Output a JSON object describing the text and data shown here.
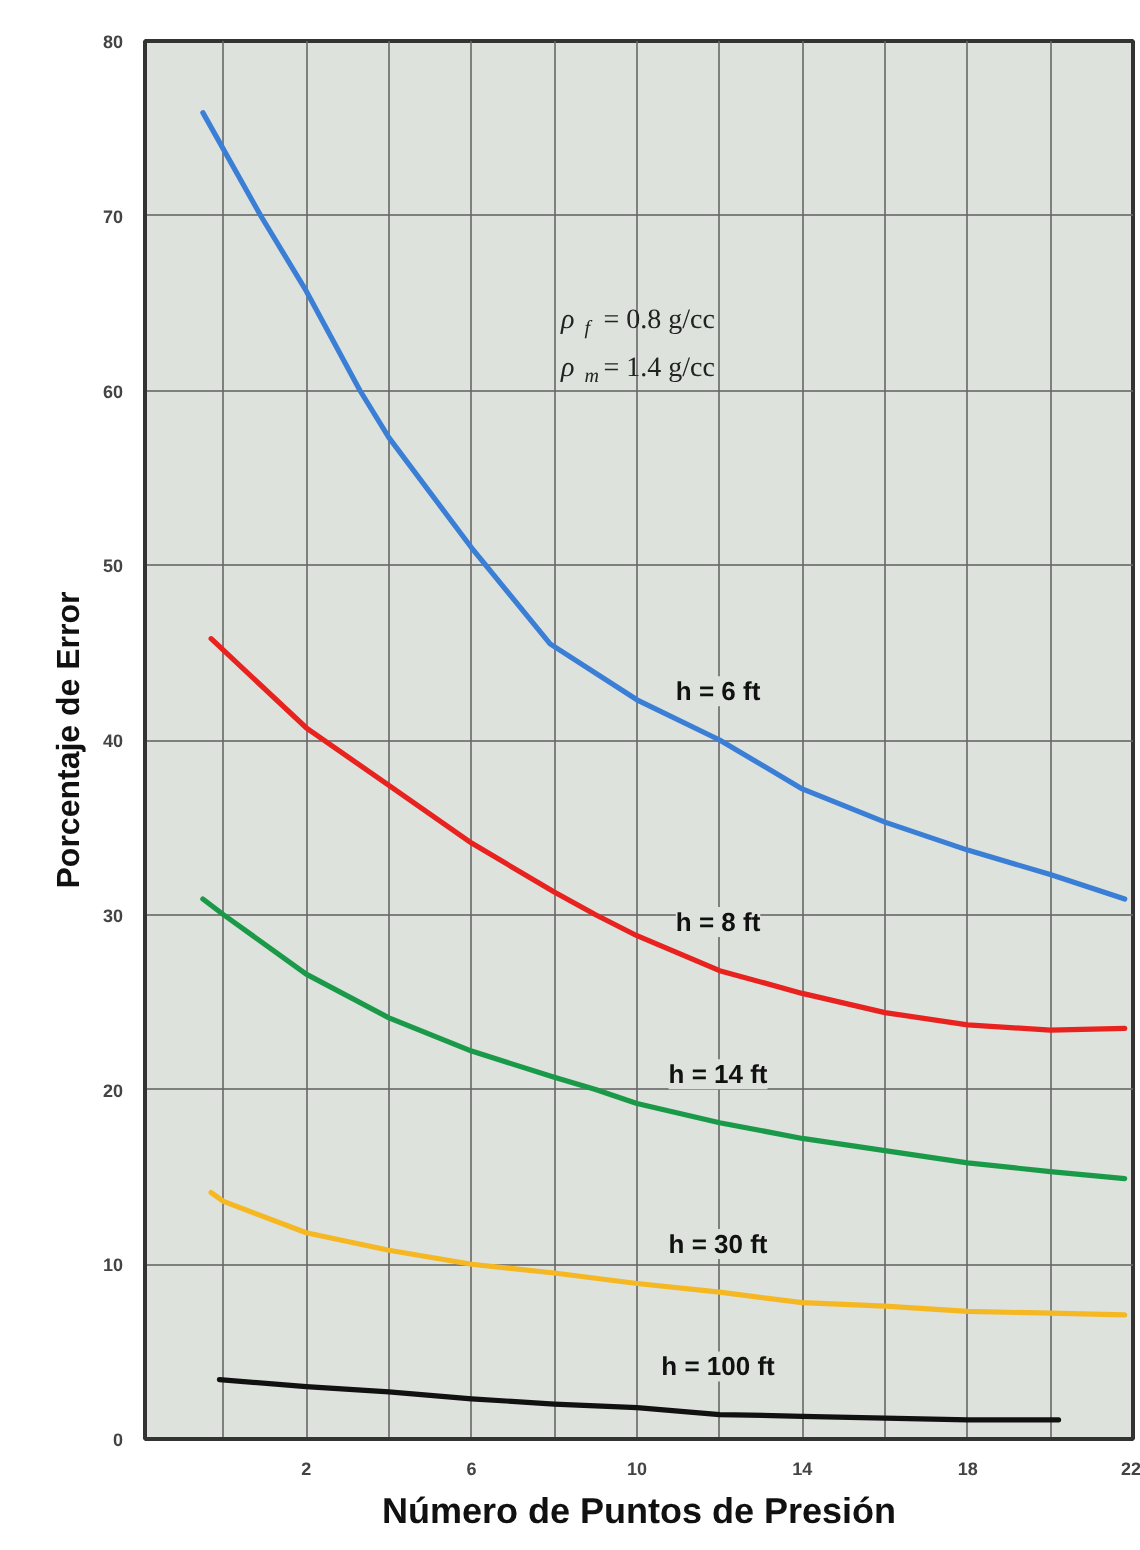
{
  "chart_data": {
    "type": "line",
    "xlabel": "Número de Puntos de Presión",
    "ylabel": "Porcentaje de Error",
    "annotations": [
      "ρ$_{f}$ = 0.8  g/cc",
      "ρ$_{m}$ = 1.4  g/cc"
    ],
    "xlim": [
      -1.9,
      22
    ],
    "ylim": [
      0,
      80
    ],
    "xticks": [
      {
        "value": 0,
        "label": null
      },
      2,
      {
        "value": 4,
        "label": null
      },
      6,
      {
        "value": 8,
        "label": null
      },
      10,
      {
        "value": 12,
        "label": null
      },
      14,
      {
        "value": 16,
        "label": null
      },
      18,
      {
        "value": 20,
        "label": null
      },
      22
    ],
    "yticks": [
      0,
      10,
      20,
      30,
      40,
      50,
      60,
      70,
      80
    ],
    "grid": true,
    "marker": "none",
    "line_style": "solid",
    "series": [
      {
        "name": "h = 6 ft",
        "color": "#3a7fd5",
        "x": [
          -0.5,
          0.9,
          2,
          3.3,
          4,
          6,
          7.9,
          10,
          12,
          14,
          16,
          18,
          20,
          21.8
        ],
        "values": [
          75.9,
          70,
          65.7,
          60,
          57.3,
          51,
          45.5,
          42.3,
          40,
          37.2,
          35.3,
          33.7,
          32.3,
          30.9
        ]
      },
      {
        "name": "h = 8 ft",
        "color": "#e8221e",
        "x": [
          -0.3,
          2,
          4,
          6,
          8,
          9,
          10,
          12,
          14,
          16,
          18,
          20,
          21.8
        ],
        "values": [
          45.8,
          40.7,
          37.4,
          34.1,
          31.3,
          30,
          28.8,
          26.8,
          25.5,
          24.4,
          23.7,
          23.4,
          23.5
        ]
      },
      {
        "name": "h = 14 ft",
        "color": "#1a9a48",
        "x": [
          -0.5,
          0,
          2,
          4,
          6,
          8,
          9,
          10,
          12,
          14,
          16,
          18,
          20,
          21.8
        ],
        "values": [
          30.9,
          30,
          26.6,
          24.1,
          22.2,
          20.7,
          20,
          19.2,
          18.1,
          17.2,
          16.5,
          15.8,
          15.3,
          14.9
        ]
      },
      {
        "name": "h = 30 ft",
        "color": "#f5b822",
        "x": [
          -0.3,
          0,
          2,
          4,
          6,
          8,
          10,
          12,
          14,
          16,
          18,
          20,
          21.8
        ],
        "values": [
          14.1,
          13.6,
          11.8,
          10.8,
          10,
          9.5,
          8.9,
          8.4,
          7.8,
          7.6,
          7.3,
          7.2,
          7.1
        ]
      },
      {
        "name": "h = 100 ft",
        "color": "#111111",
        "x": [
          -0.1,
          2,
          4,
          6,
          8,
          10,
          12,
          14,
          18,
          20.2
        ],
        "values": [
          3.4,
          3.0,
          2.7,
          2.3,
          2.0,
          1.8,
          1.4,
          1.3,
          1.1,
          1.1
        ]
      }
    ]
  }
}
